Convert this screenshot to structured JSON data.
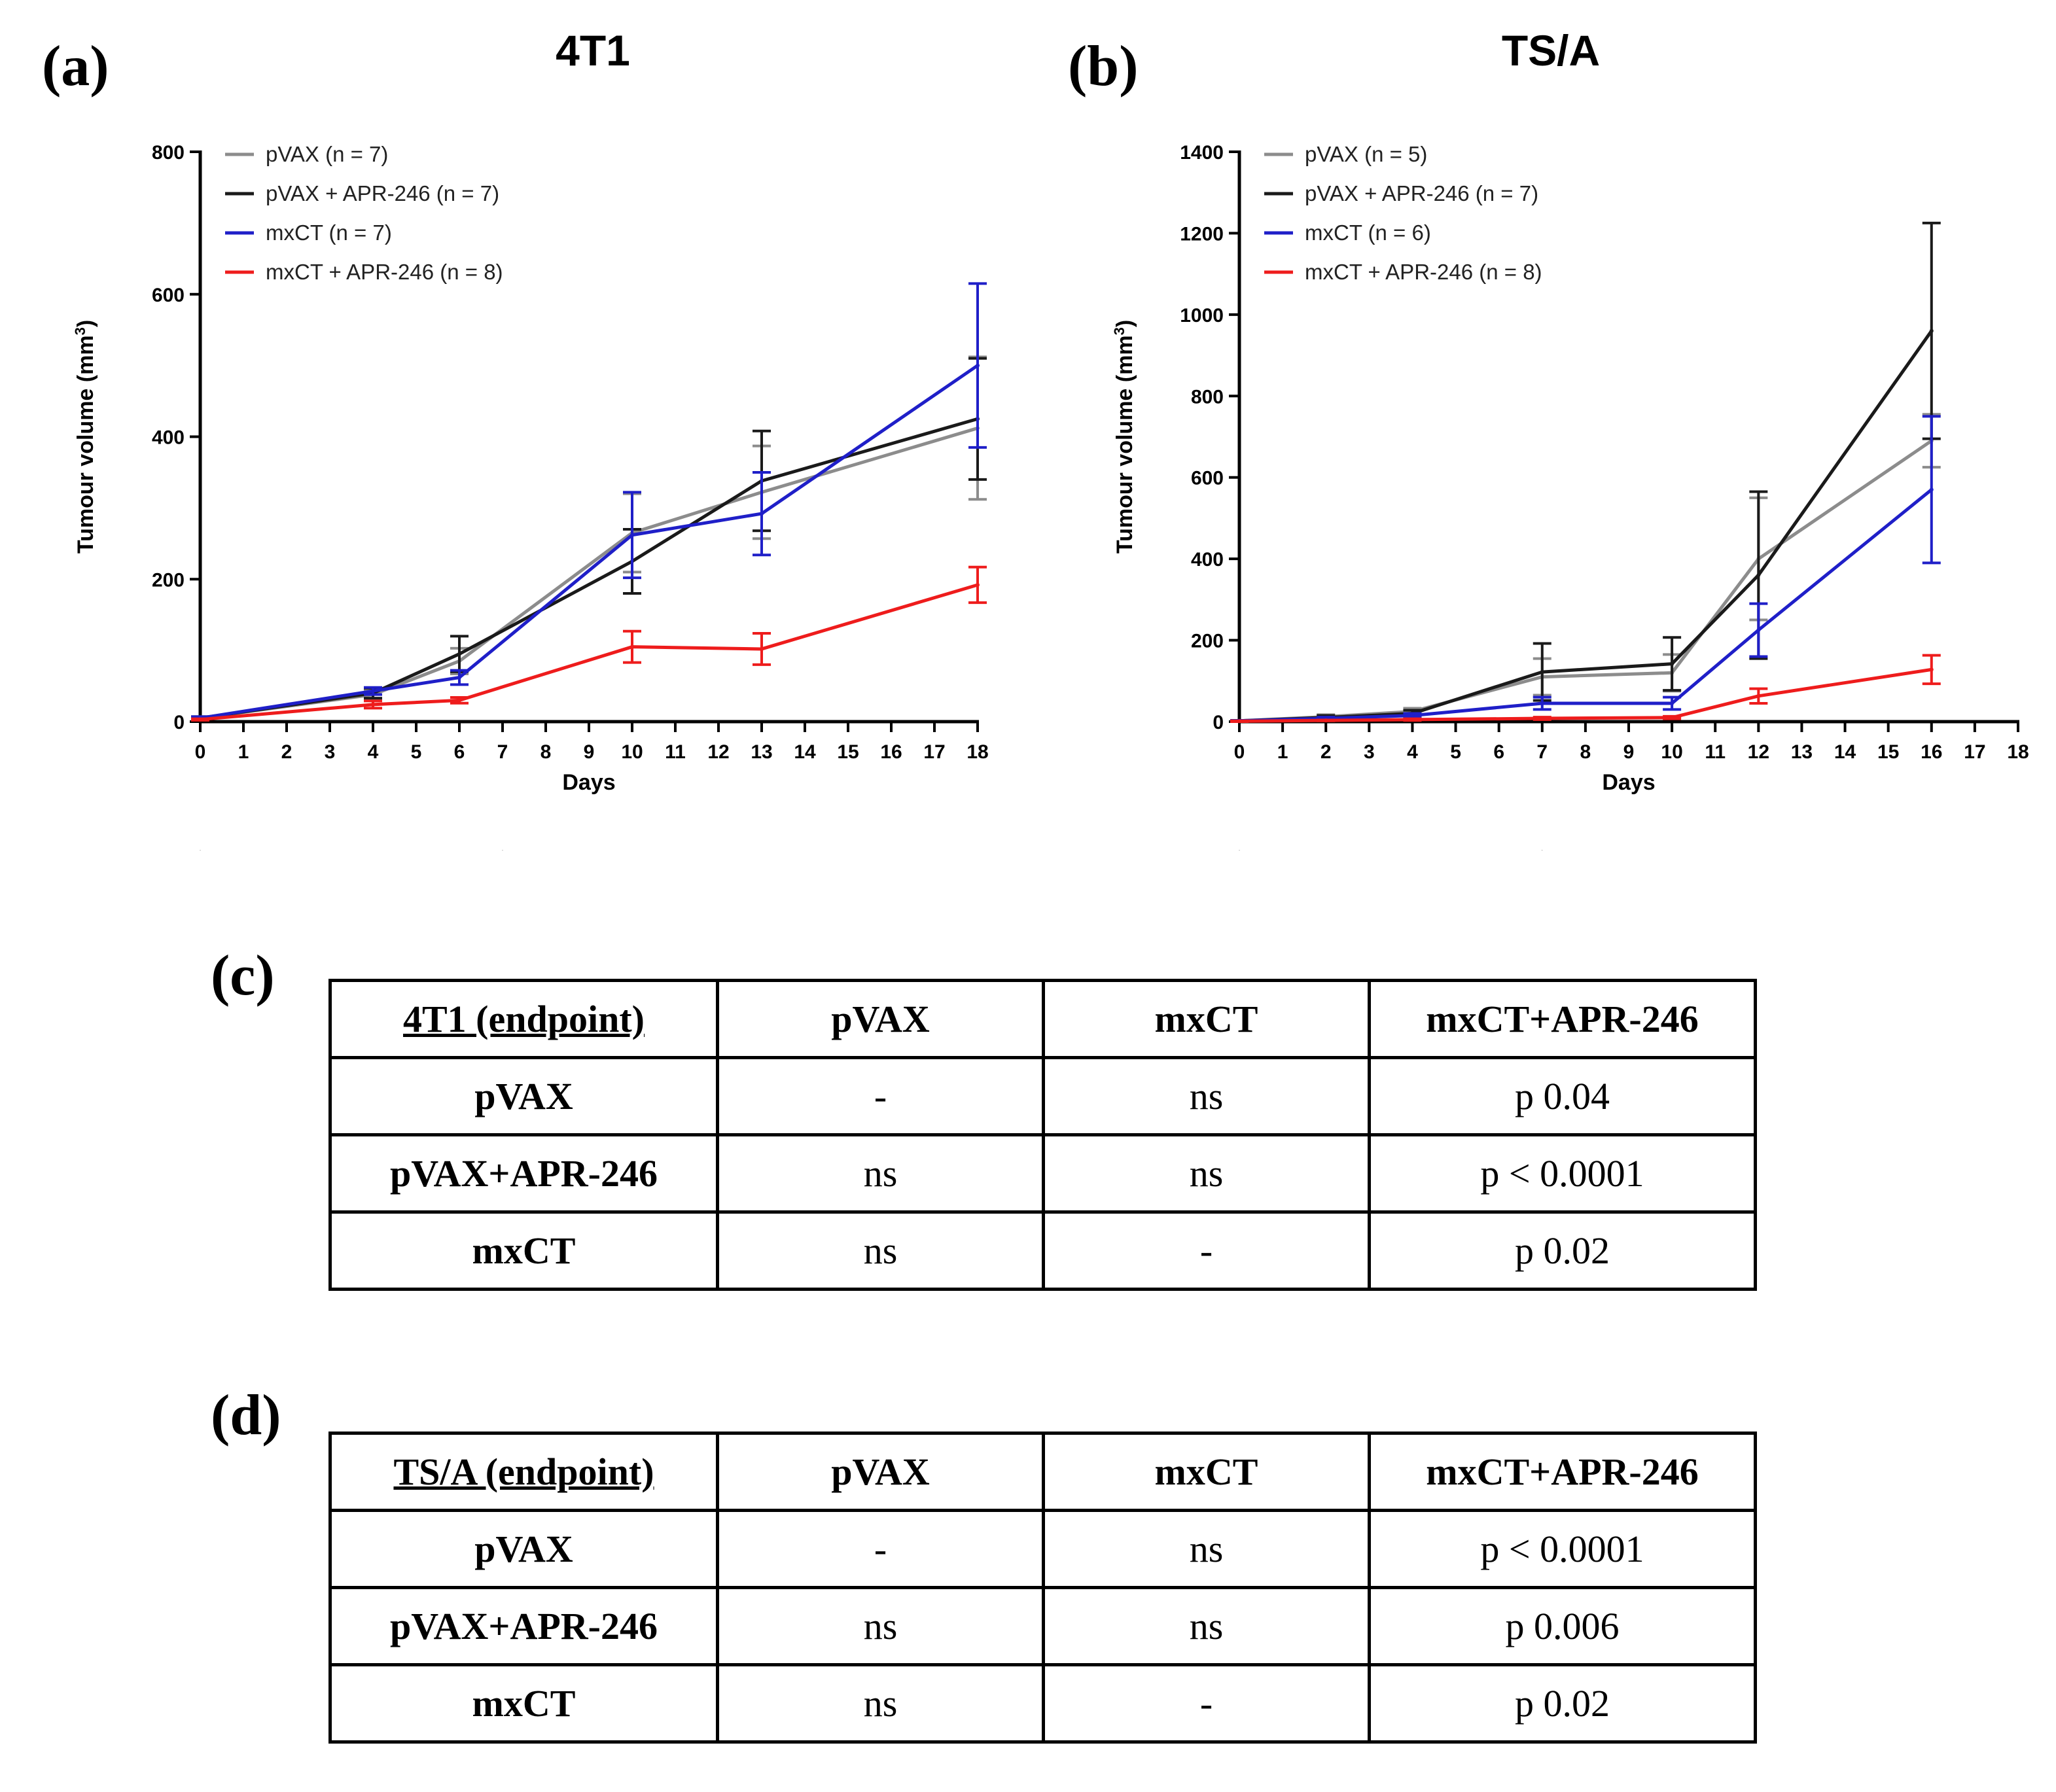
{
  "panels": [
    "(a)",
    "(b)",
    "(c)",
    "(d)"
  ],
  "chart_data": [
    {
      "type": "line",
      "title": "4T1",
      "xlabel": "Days",
      "ylabel": "Tumour volume (mm",
      "ylabel_sup": "3",
      "ylabel_close": ")",
      "xlim": [
        0,
        18
      ],
      "ylim": [
        0,
        800
      ],
      "xticks": [
        0,
        1,
        2,
        3,
        4,
        5,
        6,
        7,
        8,
        9,
        10,
        11,
        12,
        13,
        14,
        15,
        16,
        17,
        18
      ],
      "yticks": [
        0,
        200,
        400,
        600,
        800
      ],
      "arrows_at": [
        0,
        7
      ],
      "grid": false,
      "legend_position": "top-left",
      "series": [
        {
          "name": "pVAX (n = 7)",
          "color": "#8c8c8c",
          "x": [
            0,
            4,
            6,
            10,
            13,
            18
          ],
          "y": [
            5,
            38,
            85,
            265,
            322,
            412
          ],
          "err": [
            2,
            7,
            18,
            55,
            65,
            100
          ]
        },
        {
          "name": "pVAX + APR-246 (n = 7)",
          "color": "#1a1a1a",
          "x": [
            0,
            4,
            6,
            10,
            13,
            18
          ],
          "y": [
            5,
            40,
            95,
            225,
            338,
            425
          ],
          "err": [
            2,
            7,
            25,
            45,
            70,
            85
          ]
        },
        {
          "name": "mxCT (n = 7)",
          "color": "#1f1fc8",
          "x": [
            0,
            4,
            6,
            10,
            13,
            18
          ],
          "y": [
            5,
            43,
            62,
            262,
            292,
            500
          ],
          "err": [
            2,
            5,
            10,
            60,
            58,
            115
          ]
        },
        {
          "name": "mxCT + APR-246 (n = 8)",
          "color": "#ee1c1c",
          "x": [
            0,
            4,
            6,
            10,
            13,
            18
          ],
          "y": [
            3,
            24,
            30,
            105,
            102,
            192
          ],
          "err": [
            1,
            5,
            4,
            22,
            22,
            25
          ]
        }
      ]
    },
    {
      "type": "line",
      "title": "TS/A",
      "xlabel": "Days",
      "ylabel": "Tumour volume (mm",
      "ylabel_sup": "3",
      "ylabel_close": ")",
      "xlim": [
        0,
        18
      ],
      "ylim": [
        0,
        1400
      ],
      "xticks": [
        0,
        1,
        2,
        3,
        4,
        5,
        6,
        7,
        8,
        9,
        10,
        11,
        12,
        13,
        14,
        15,
        16,
        17,
        18
      ],
      "yticks": [
        0,
        200,
        400,
        600,
        800,
        1000,
        1200,
        1400
      ],
      "arrows_at": [
        0,
        7
      ],
      "grid": false,
      "legend_position": "top-left",
      "series": [
        {
          "name": "pVAX (n = 5)",
          "color": "#8c8c8c",
          "x": [
            0,
            2,
            4,
            7,
            10,
            12,
            16
          ],
          "y": [
            2,
            12,
            25,
            110,
            120,
            400,
            690
          ],
          "err": [
            1,
            5,
            8,
            45,
            45,
            150,
            65
          ]
        },
        {
          "name": "pVAX + APR-246 (n = 7)",
          "color": "#1a1a1a",
          "x": [
            0,
            2,
            4,
            7,
            10,
            12,
            16
          ],
          "y": [
            2,
            10,
            20,
            122,
            142,
            360,
            960
          ],
          "err": [
            1,
            5,
            8,
            70,
            65,
            205,
            265
          ]
        },
        {
          "name": "mxCT (n = 6)",
          "color": "#1f1fc8",
          "x": [
            0,
            2,
            4,
            7,
            10,
            12,
            16
          ],
          "y": [
            2,
            8,
            15,
            45,
            45,
            225,
            570
          ],
          "err": [
            1,
            3,
            5,
            15,
            15,
            65,
            180
          ]
        },
        {
          "name": "mxCT + APR-246 (n = 8)",
          "color": "#ee1c1c",
          "x": [
            0,
            2,
            4,
            7,
            10,
            12,
            16
          ],
          "y": [
            1,
            3,
            5,
            8,
            10,
            63,
            128
          ],
          "err": [
            1,
            1,
            2,
            3,
            3,
            18,
            35
          ]
        }
      ]
    }
  ],
  "tables": [
    {
      "headers": [
        "4T1 (endpoint)",
        "pVAX",
        "mxCT",
        "mxCT+APR-246"
      ],
      "rows": [
        [
          "pVAX",
          "-",
          "ns",
          "p 0.04"
        ],
        [
          "pVAX+APR-246",
          "ns",
          "ns",
          "p < 0.0001"
        ],
        [
          "mxCT",
          "ns",
          "-",
          "p 0.02"
        ]
      ]
    },
    {
      "headers": [
        "TS/A (endpoint)",
        "pVAX",
        "mxCT",
        "mxCT+APR-246"
      ],
      "rows": [
        [
          "pVAX",
          "-",
          "ns",
          "p < 0.0001"
        ],
        [
          "pVAX+APR-246",
          "ns",
          "ns",
          "p 0.006"
        ],
        [
          "mxCT",
          "ns",
          "-",
          "p 0.02"
        ]
      ]
    }
  ]
}
